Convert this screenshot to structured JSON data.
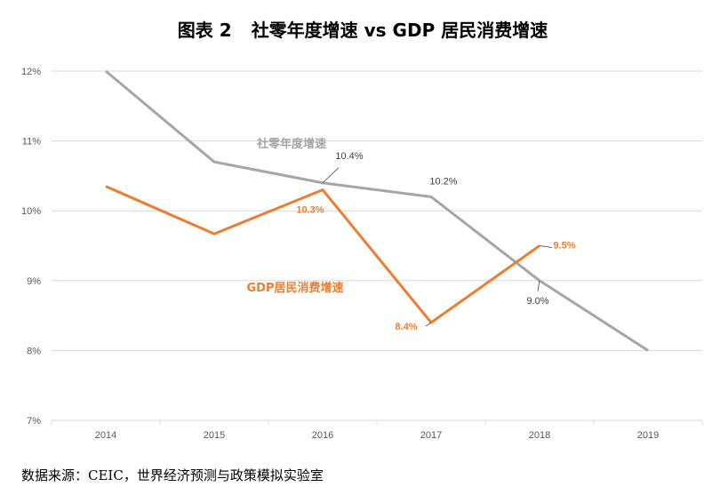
{
  "title_prefix": "图表 2",
  "title": "社零年度增速 vs GDP 居民消费增速",
  "source": "数据来源：CEIC，世界经济预测与政策模拟实验室",
  "chart_data": {
    "type": "line",
    "x": [
      "2014",
      "2015",
      "2016",
      "2017",
      "2018",
      "2019"
    ],
    "ylim": [
      7,
      12
    ],
    "yticks": [
      7,
      8,
      9,
      10,
      11,
      12
    ],
    "ytick_labels": [
      "7%",
      "8%",
      "9%",
      "10%",
      "11%",
      "12%"
    ],
    "grid": true,
    "series": [
      {
        "name": "社零年度增速",
        "color": "#a6a6a6",
        "values": [
          12.0,
          10.7,
          10.4,
          10.2,
          9.0,
          8.0
        ],
        "labels": [
          "",
          "",
          "10.4%",
          "10.2%",
          "9.0%",
          ""
        ]
      },
      {
        "name": "GDP居民消费增速",
        "color": "#ed7d31",
        "values": [
          10.35,
          9.67,
          10.3,
          8.4,
          9.5,
          null
        ],
        "labels": [
          "",
          "",
          "10.3%",
          "8.4%",
          "9.5%",
          ""
        ]
      }
    ]
  }
}
